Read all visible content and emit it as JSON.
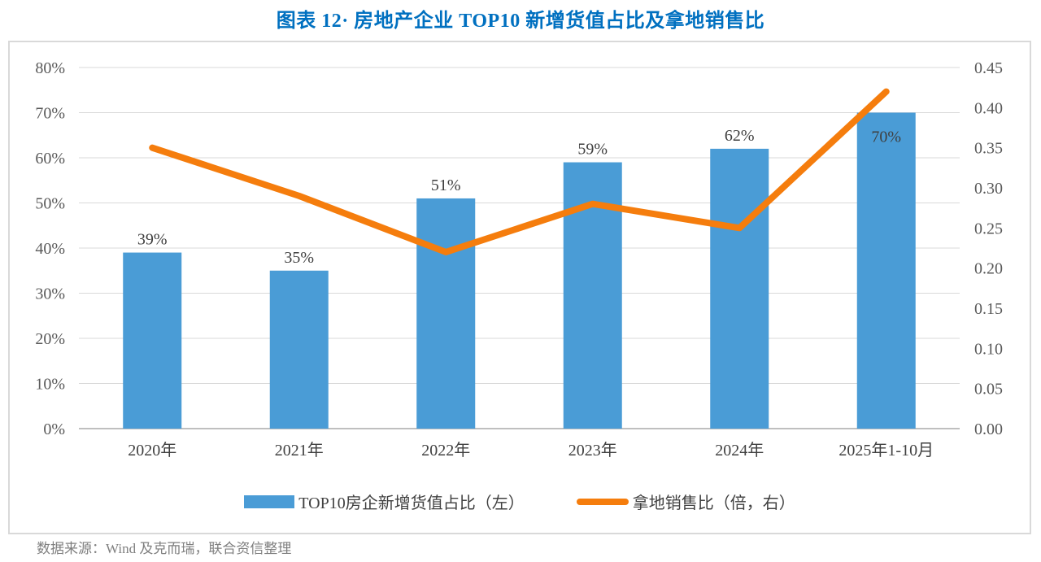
{
  "page": {
    "title": "图表 12· 房地产企业 TOP10 新增货值占比及拿地销售比",
    "source_note": "数据来源：Wind 及克而瑞，联合资信整理"
  },
  "colors": {
    "bar": "#4A9CD6",
    "line": "#F57D0D",
    "title": "#0070C0",
    "grid": "#D9D9D9",
    "axis_line": "#BFBFBF",
    "axis_text": "#595959",
    "xtick_text": "#404040",
    "label_text": "#3F3F3F",
    "source_text": "#7F7F7F",
    "border": "#D9D9D9"
  },
  "chart_data": {
    "type": "bar-line-combo",
    "title": "图表 12· 房地产企业 TOP10 新增货值占比及拿地销售比",
    "categories": [
      "2020年",
      "2021年",
      "2022年",
      "2023年",
      "2024年",
      "2025年1-10月"
    ],
    "series": [
      {
        "name": "TOP10房企新增货值占比（左）",
        "type": "bar",
        "axis": "left",
        "values": [
          39,
          35,
          51,
          59,
          62,
          70
        ],
        "labels": [
          "39%",
          "35%",
          "51%",
          "59%",
          "62%",
          "70%"
        ],
        "label_placement": [
          "above",
          "above",
          "above",
          "above",
          "above",
          "inside"
        ],
        "color": "#4A9CD6"
      },
      {
        "name": "拿地销售比（倍，右）",
        "type": "line",
        "axis": "right",
        "values": [
          0.35,
          0.29,
          0.22,
          0.28,
          0.25,
          0.42
        ],
        "color": "#F57D0D"
      }
    ],
    "left_axis": {
      "min": 0,
      "max": 80,
      "ticks": [
        "0%",
        "10%",
        "20%",
        "30%",
        "40%",
        "50%",
        "60%",
        "70%",
        "80%"
      ]
    },
    "right_axis": {
      "min": 0,
      "max": 0.45,
      "ticks": [
        "0.00",
        "0.05",
        "0.10",
        "0.15",
        "0.20",
        "0.25",
        "0.30",
        "0.35",
        "0.40",
        "0.45"
      ]
    },
    "grid": "horizontal",
    "legend_position": "bottom"
  }
}
